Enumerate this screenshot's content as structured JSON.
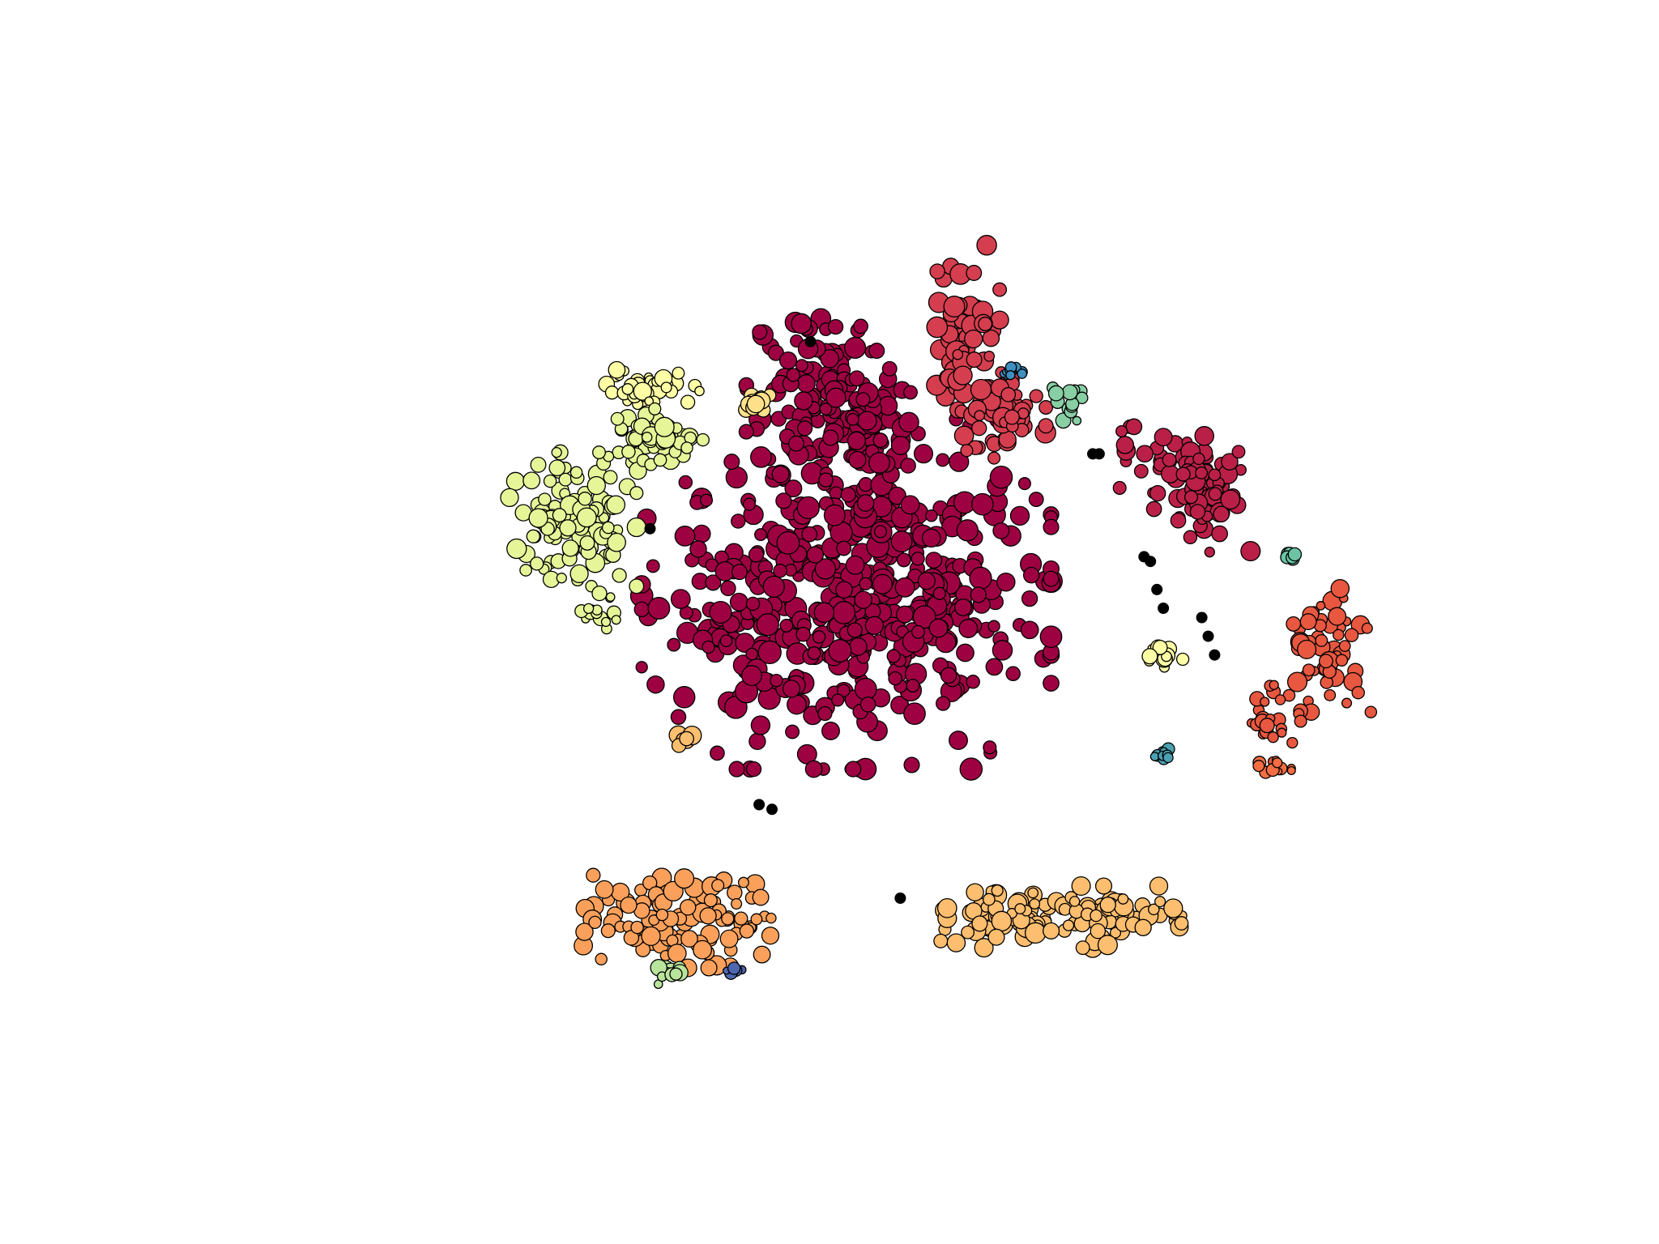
{
  "chart_data": {
    "type": "scatter",
    "title": "",
    "xlabel": "",
    "ylabel": "",
    "axes_visible": false,
    "grid": false,
    "legend": "none",
    "xlim": [
      0,
      100
    ],
    "ylim": [
      0,
      100
    ],
    "marker_edge_color": "#000000",
    "noise_color": "#000000",
    "clusters": [
      {
        "color": "#9e0142",
        "center": [
          49.8,
          52.5
        ],
        "spread": [
          14.5,
          17.0
        ],
        "n": 520,
        "size_range": [
          7,
          14
        ]
      },
      {
        "color": "#9e0142",
        "center": [
          47.5,
          75.5
        ],
        "spread": [
          5.0,
          7.5
        ],
        "n": 90,
        "size_range": [
          7,
          13
        ]
      },
      {
        "color": "#9e0142",
        "center": [
          51.5,
          70.0
        ],
        "spread": [
          3.0,
          6.0
        ],
        "n": 45,
        "size_range": [
          7,
          13
        ]
      },
      {
        "color": "#ba2047",
        "center": [
          76.0,
          66.0
        ],
        "spread": [
          5.0,
          4.0
        ],
        "n": 55,
        "size_range": [
          6,
          12
        ]
      },
      {
        "color": "#ba2047",
        "center": [
          78.0,
          62.5
        ],
        "spread": [
          3.0,
          5.0
        ],
        "n": 35,
        "size_range": [
          6,
          12
        ]
      },
      {
        "color": "#d53e4f",
        "center": [
          59.0,
          81.0
        ],
        "spread": [
          2.5,
          8.0
        ],
        "n": 70,
        "size_range": [
          6,
          13
        ]
      },
      {
        "color": "#d53e4f",
        "center": [
          61.5,
          72.0
        ],
        "spread": [
          3.5,
          4.5
        ],
        "n": 55,
        "size_range": [
          6,
          13
        ]
      },
      {
        "color": "#e8573f",
        "center": [
          87.5,
          46.5
        ],
        "spread": [
          3.5,
          6.0
        ],
        "n": 55,
        "size_range": [
          5,
          12
        ]
      },
      {
        "color": "#e8573f",
        "center": [
          83.0,
          39.0
        ],
        "spread": [
          2.0,
          4.0
        ],
        "n": 25,
        "size_range": [
          5,
          9
        ]
      },
      {
        "color": "#f46d43",
        "center": [
          82.5,
          34.0
        ],
        "spread": [
          1.8,
          1.2
        ],
        "n": 10,
        "size_range": [
          4,
          8
        ]
      },
      {
        "color": "#fba05b",
        "center": [
          37.0,
          17.5
        ],
        "spread": [
          7.0,
          4.5
        ],
        "n": 110,
        "size_range": [
          6,
          12
        ]
      },
      {
        "color": "#fdbe6f",
        "center": [
          62.5,
          18.0
        ],
        "spread": [
          5.0,
          3.0
        ],
        "n": 70,
        "size_range": [
          6,
          13
        ]
      },
      {
        "color": "#fdbe6f",
        "center": [
          71.0,
          18.0
        ],
        "spread": [
          4.5,
          3.0
        ],
        "n": 55,
        "size_range": [
          6,
          12
        ]
      },
      {
        "color": "#fdbe6f",
        "center": [
          37.3,
          37.0
        ],
        "spread": [
          0.8,
          1.2
        ],
        "n": 6,
        "size_range": [
          7,
          12
        ]
      },
      {
        "color": "#fee08b",
        "center": [
          42.5,
          73.0
        ],
        "spread": [
          1.2,
          1.2
        ],
        "n": 12,
        "size_range": [
          5,
          11
        ]
      },
      {
        "color": "#ffffa6",
        "center": [
          34.5,
          74.5
        ],
        "spread": [
          3.5,
          1.8
        ],
        "n": 40,
        "size_range": [
          5,
          11
        ]
      },
      {
        "color": "#ffffa6",
        "center": [
          74.5,
          46.0
        ],
        "spread": [
          1.8,
          1.2
        ],
        "n": 16,
        "size_range": [
          5,
          10
        ]
      },
      {
        "color": "#e6f598",
        "center": [
          28.5,
          60.5
        ],
        "spread": [
          4.5,
          6.5
        ],
        "n": 110,
        "size_range": [
          6,
          12
        ]
      },
      {
        "color": "#e6f598",
        "center": [
          35.0,
          69.0
        ],
        "spread": [
          3.5,
          3.0
        ],
        "n": 55,
        "size_range": [
          6,
          12
        ]
      },
      {
        "color": "#e6f598",
        "center": [
          30.5,
          51.0
        ],
        "spread": [
          2.0,
          2.0
        ],
        "n": 14,
        "size_range": [
          5,
          10
        ]
      },
      {
        "color": "#b9e49c",
        "center": [
          36.3,
          12.0
        ],
        "spread": [
          1.6,
          1.6
        ],
        "n": 12,
        "size_range": [
          5,
          11
        ]
      },
      {
        "color": "#88cfa4",
        "center": [
          67.2,
          72.8
        ],
        "spread": [
          1.3,
          1.6
        ],
        "n": 14,
        "size_range": [
          5,
          10
        ]
      },
      {
        "color": "#6cc4a5",
        "center": [
          84.5,
          56.5
        ],
        "spread": [
          0.4,
          0.6
        ],
        "n": 6,
        "size_range": [
          6,
          9
        ]
      },
      {
        "color": "#4ba0b1",
        "center": [
          74.5,
          35.5
        ],
        "spread": [
          0.6,
          0.8
        ],
        "n": 10,
        "size_range": [
          4,
          8
        ]
      },
      {
        "color": "#3f8fc0",
        "center": [
          62.5,
          76.2
        ],
        "spread": [
          0.9,
          0.5
        ],
        "n": 10,
        "size_range": [
          4,
          7
        ]
      },
      {
        "color": "#4d67b0",
        "center": [
          41.0,
          12.3
        ],
        "spread": [
          0.7,
          0.4
        ],
        "n": 8,
        "size_range": [
          4,
          8
        ]
      }
    ],
    "noise_points": [
      [
        47.0,
        79.5
      ],
      [
        34.5,
        59.5
      ],
      [
        54.0,
        20.0
      ],
      [
        43.0,
        30.0
      ],
      [
        44.0,
        29.5
      ],
      [
        69.0,
        67.5
      ],
      [
        69.5,
        67.5
      ],
      [
        73.5,
        56.0
      ],
      [
        74.0,
        53.0
      ],
      [
        74.5,
        51.0
      ],
      [
        77.5,
        50.0
      ],
      [
        78.0,
        48.0
      ],
      [
        78.5,
        46.0
      ],
      [
        73.0,
        56.5
      ]
    ]
  }
}
